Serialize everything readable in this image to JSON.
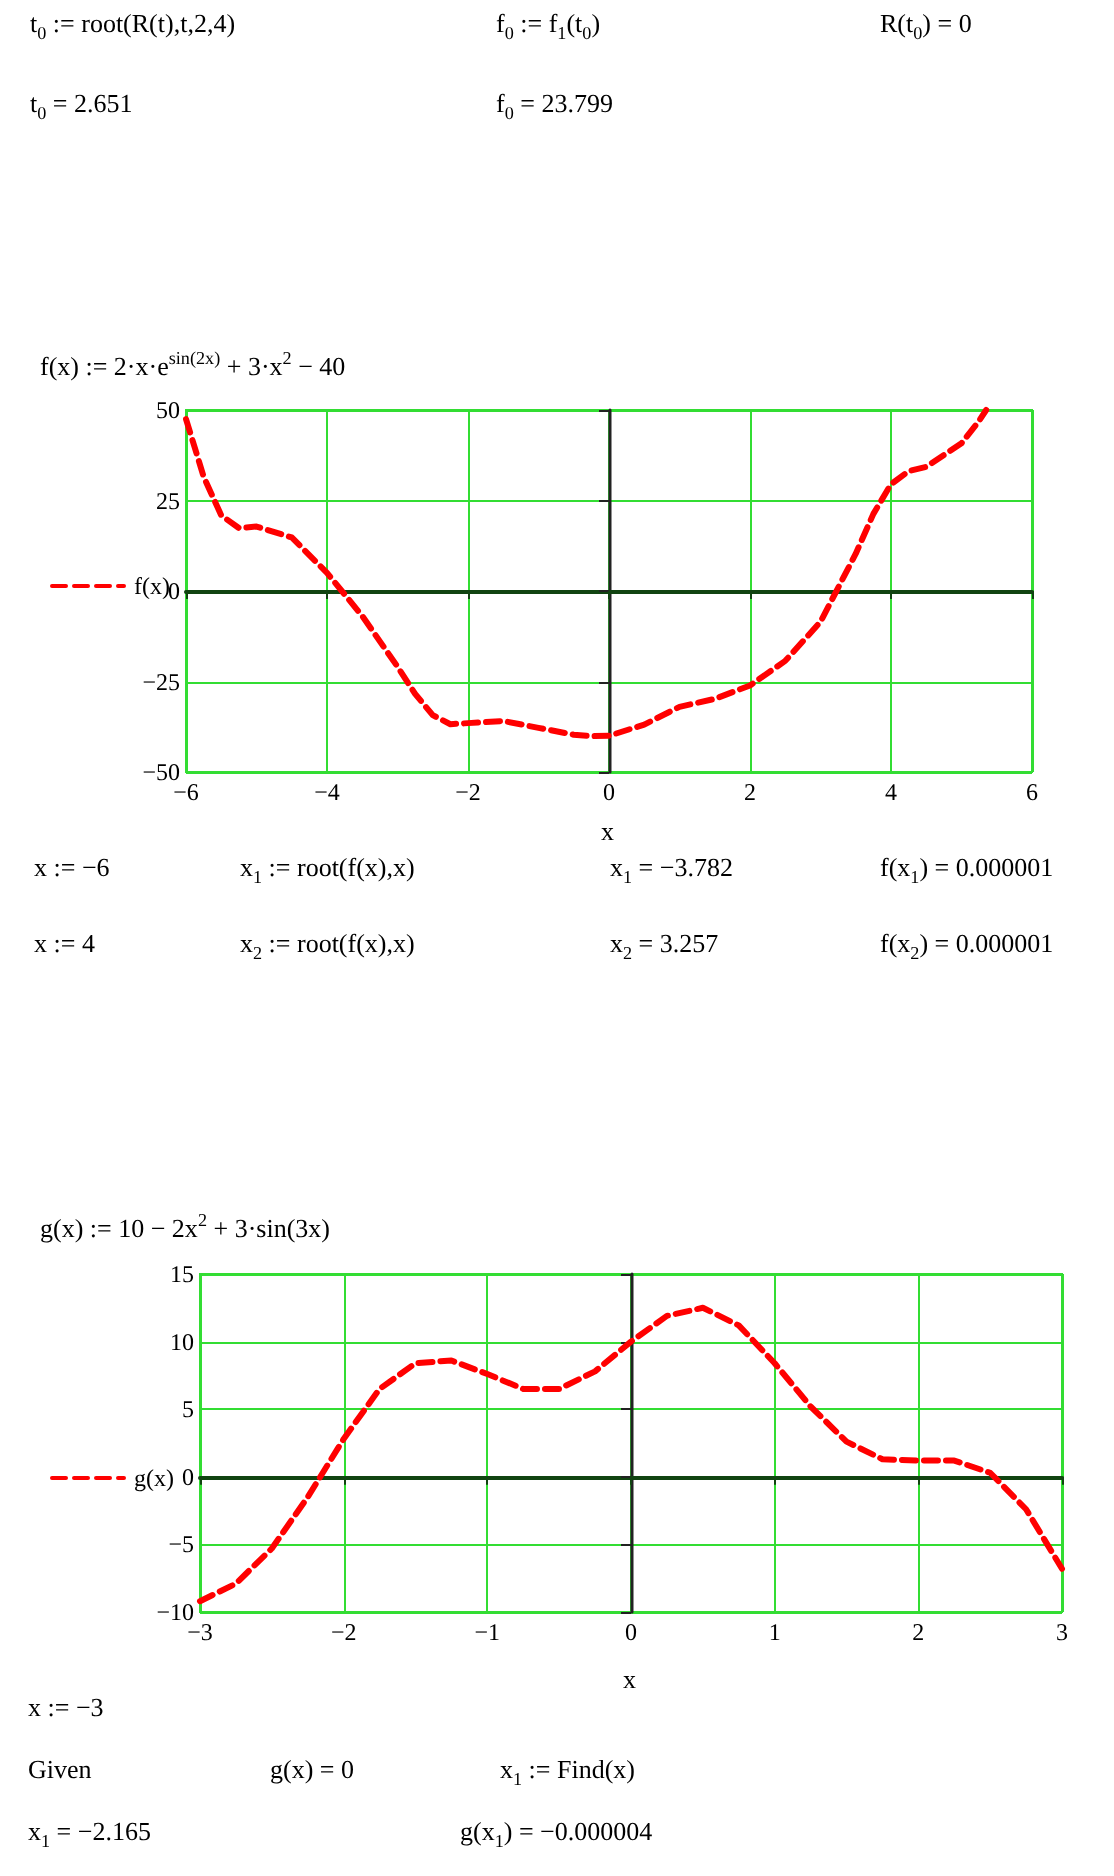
{
  "chart_data": [
    {
      "type": "other",
      "annotations": [
        "t$_{0}$ := root(R(t),t,2,4)",
        "f$_{0}$ := f$_{1}$(t$_{0}$)",
        "R(t$_{0}$) = 0",
        "t$_{0}$ = 2.651",
        "f$_{0}$ = 23.799"
      ]
    },
    {
      "type": "line",
      "title": "f(x) := 2·x·e$^{sin(2x)}$ + 3·x$^{2}$ − 40",
      "xlabel": "x",
      "legend": "left",
      "grid": true,
      "marker": "none",
      "line_style": "dashed",
      "xlim": [
        -6,
        6
      ],
      "xticks": [
        -6,
        -4,
        -2,
        0,
        2,
        4,
        6
      ],
      "ylim": [
        -50,
        50
      ],
      "yticks": [
        -50,
        -25,
        0,
        25,
        50
      ],
      "series": [
        {
          "name": "f(x)",
          "color": "#ff0000",
          "x": [
            -6,
            -5.75,
            -5.5,
            -5.25,
            -5,
            -4.5,
            -4,
            -3.5,
            -3,
            -2.75,
            -2.5,
            -2.25,
            -2,
            -1.5,
            -1,
            -0.5,
            -0.25,
            0,
            0.5,
            1,
            1.5,
            2,
            2.5,
            3,
            3.5,
            3.75,
            4,
            4.25,
            4.5,
            5,
            5.25,
            5.35
          ],
          "values": [
            47.5,
            31.6,
            20.9,
            17.4,
            17.8,
            14.8,
            5.0,
            -6.9,
            -20.9,
            -28.4,
            -34.3,
            -36.8,
            -36.5,
            -35.9,
            -37.8,
            -39.7,
            -40.1,
            -40,
            -36.9,
            -32.0,
            -29.8,
            -26.1,
            -19.3,
            -8.5,
            10.3,
            21.3,
            29.5,
            33.1,
            34.3,
            40.8,
            47.0,
            50
          ]
        }
      ]
    },
    {
      "type": "other",
      "annotations": [
        "x := −6",
        "x$_{1}$ := root(f(x),x)",
        "x$_{1}$ = −3.782",
        "f(x$_{1}$) = 0.000001",
        "x := 4",
        "x$_{2}$ := root(f(x),x)",
        "x$_{2}$ = 3.257",
        "f(x$_{2}$) = 0.000001"
      ]
    },
    {
      "type": "line",
      "title": "g(x) := 10 − 2x$^{2}$ + 3·sin(3x)",
      "xlabel": "x",
      "legend": "left",
      "grid": true,
      "marker": "none",
      "line_style": "dashed",
      "xlim": [
        -3,
        3
      ],
      "xticks": [
        -3,
        -2,
        -1,
        0,
        1,
        2,
        3
      ],
      "ylim": [
        -10,
        15
      ],
      "yticks": [
        -10,
        -5,
        0,
        5,
        10,
        15
      ],
      "series": [
        {
          "name": "g(x)",
          "color": "#ff0000",
          "x": [
            -3,
            -2.75,
            -2.5,
            -2.25,
            -2,
            -1.75,
            -1.5,
            -1.25,
            -1,
            -0.75,
            -0.5,
            -0.25,
            0,
            0.25,
            0.5,
            0.75,
            1,
            1.25,
            1.5,
            1.75,
            2,
            2.25,
            2.5,
            2.75,
            3
          ],
          "values": [
            -9.2,
            -7.9,
            -5.3,
            -1.5,
            2.8,
            6.5,
            8.4,
            8.6,
            7.6,
            6.5,
            6.5,
            7.8,
            10,
            11.9,
            12.5,
            11.2,
            8.4,
            5.2,
            2.6,
            1.3,
            1.2,
            1.2,
            0.3,
            -2.4,
            -6.8
          ]
        }
      ]
    },
    {
      "type": "other",
      "annotations": [
        "x := −3",
        "Given",
        "g(x) = 0",
        "x$_{1}$ := Find(x)",
        "x$_{1}$ = −2.165",
        "g(x$_{1}$) = −0.000004"
      ]
    }
  ]
}
